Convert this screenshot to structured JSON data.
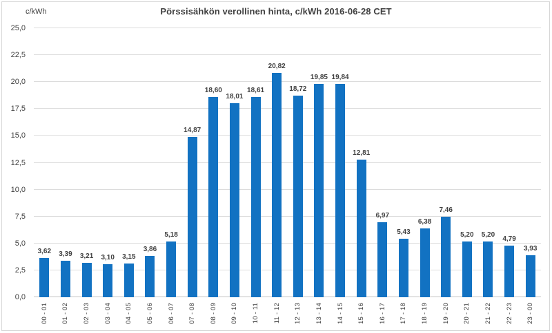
{
  "chart_data": {
    "type": "bar",
    "title": "Pörssisähkön verollinen hinta, c/kWh 2016-06-28 CET",
    "ylabel": "c/kWh",
    "xlabel": "",
    "categories": [
      "00 - 01",
      "01 - 02",
      "02 - 03",
      "03 - 04",
      "04 - 05",
      "05 - 06",
      "06 - 07",
      "07 - 08",
      "08 - 09",
      "09 - 10",
      "10 - 11",
      "11 - 12",
      "12 - 13",
      "13 - 14",
      "14 - 15",
      "15 - 16",
      "16 - 17",
      "17 - 18",
      "18 - 19",
      "19 - 20",
      "20 - 21",
      "21 - 22",
      "22 - 23",
      "23 - 00"
    ],
    "values": [
      3.62,
      3.39,
      3.21,
      3.1,
      3.15,
      3.86,
      5.18,
      14.87,
      18.6,
      18.01,
      18.61,
      20.82,
      18.72,
      19.85,
      19.84,
      12.81,
      6.97,
      5.43,
      6.38,
      7.46,
      5.2,
      5.2,
      4.79,
      3.93
    ],
    "value_labels": [
      "3,62",
      "3,39",
      "3,21",
      "3,10",
      "3,15",
      "3,86",
      "5,18",
      "14,87",
      "18,60",
      "18,01",
      "18,61",
      "20,82",
      "18,72",
      "19,85",
      "19,84",
      "12,81",
      "6,97",
      "5,43",
      "6,38",
      "7,46",
      "5,20",
      "5,20",
      "4,79",
      "3,93"
    ],
    "ylim": [
      0,
      25
    ],
    "ytick_step": 2.5,
    "ytick_labels": [
      "0,0",
      "2,5",
      "5,0",
      "7,5",
      "10,0",
      "12,5",
      "15,0",
      "17,5",
      "20,0",
      "22,5",
      "25,0"
    ],
    "grid": "horizontal",
    "legend": "none",
    "bar_color": "#1272c2",
    "decimal_separator": ","
  }
}
